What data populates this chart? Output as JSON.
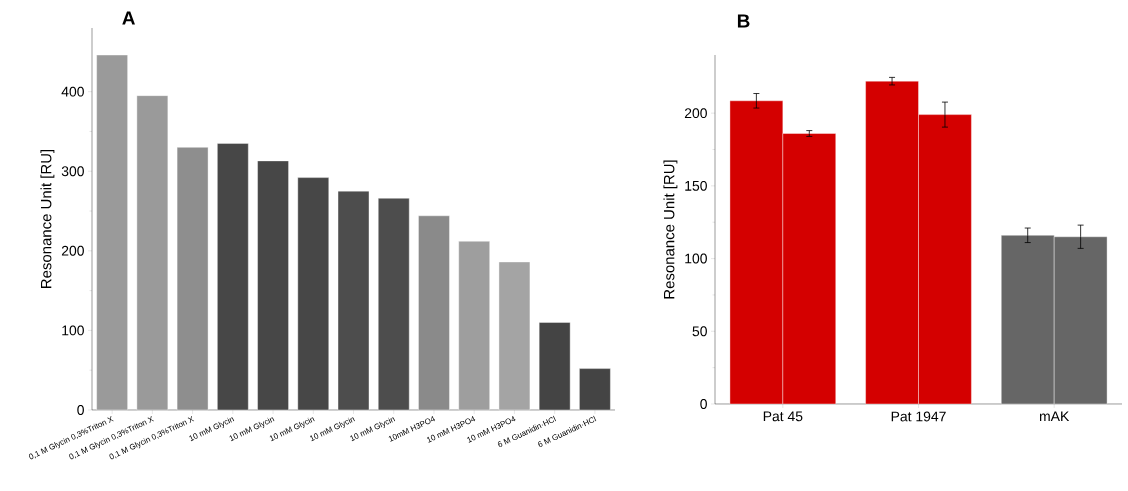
{
  "chart_data": [
    {
      "type": "bar",
      "title": "A",
      "ylabel": "Resonance Unit [RU]",
      "categories": [
        "0,1 M Glycin 0,3%Triton X",
        "0,1 M Glycin 0,3%Triton X",
        "0,1 M Glycin 0,3%Triton X",
        "10 mM Glycin",
        "10 mM Glycin",
        "10 mM Glycin",
        "10 mM Glycin",
        "10 mM Glycin",
        "10mM H3PO4",
        "10 mM H3PO4",
        "10 mM H3PO4",
        "6 M Guanidin·HCl",
        "6 M Guanidin·HCl"
      ],
      "values": [
        446,
        395,
        330,
        335,
        313,
        292,
        275,
        266,
        244,
        212,
        186,
        110,
        52
      ],
      "colors": [
        "#9a9a9a",
        "#9a9a9a",
        "#8e8e8e",
        "#474747",
        "#474747",
        "#474747",
        "#4d4d4d",
        "#4d4d4d",
        "#8a8a8a",
        "#9e9e9e",
        "#a4a4a4",
        "#444444",
        "#444444"
      ],
      "ylim": [
        0,
        480
      ],
      "yticks": [
        0,
        100,
        200,
        300,
        400
      ]
    },
    {
      "type": "bar",
      "title": "B",
      "ylabel": "Resonance Unit [RU]",
      "categories": [
        "Pat 45",
        "Pat 1947",
        "mAK"
      ],
      "series": [
        {
          "values": [
            208.5,
            222,
            116
          ],
          "errors": [
            5,
            2.6,
            5
          ],
          "colors": [
            "#d40000",
            "#d40000",
            "#666666"
          ]
        },
        {
          "values": [
            186,
            199,
            115
          ],
          "errors": [
            2,
            8.6,
            8
          ],
          "colors": [
            "#d40000",
            "#d40000",
            "#666666"
          ]
        }
      ],
      "ylim": [
        0,
        240
      ],
      "yticks": [
        0,
        50,
        100,
        150,
        200
      ]
    }
  ]
}
